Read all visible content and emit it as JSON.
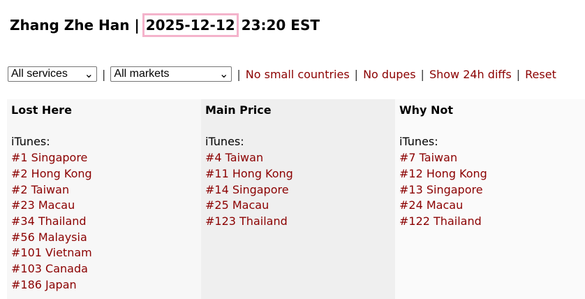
{
  "header": {
    "name": "Zhang Zhe Han",
    "separator": "|",
    "date": "2025-12-12",
    "time": "23:20 EST"
  },
  "toolbar": {
    "service_select": "All services",
    "market_select": "All markets",
    "links": [
      "No small countries",
      "No dupes",
      "Show 24h diffs",
      "Reset"
    ]
  },
  "columns": [
    {
      "title": "Lost Here",
      "service": "iTunes:",
      "items": [
        "#1 Singapore",
        "#2 Hong Kong",
        "#2 Taiwan",
        "#23 Macau",
        "#34 Thailand",
        "#56 Malaysia",
        "#101 Vietnam",
        "#103 Canada",
        "#186 Japan"
      ]
    },
    {
      "title": "Main Price",
      "service": "iTunes:",
      "items": [
        "#4 Taiwan",
        "#11 Hong Kong",
        "#14 Singapore",
        "#25 Macau",
        "#123 Thailand"
      ]
    },
    {
      "title": "Why Not",
      "service": "iTunes:",
      "items": [
        "#7 Taiwan",
        "#12 Hong Kong",
        "#13 Singapore",
        "#24 Macau",
        "#122 Thailand"
      ]
    }
  ],
  "colors": {
    "link": "#8b0000",
    "highlight": "#f4b3cb"
  }
}
